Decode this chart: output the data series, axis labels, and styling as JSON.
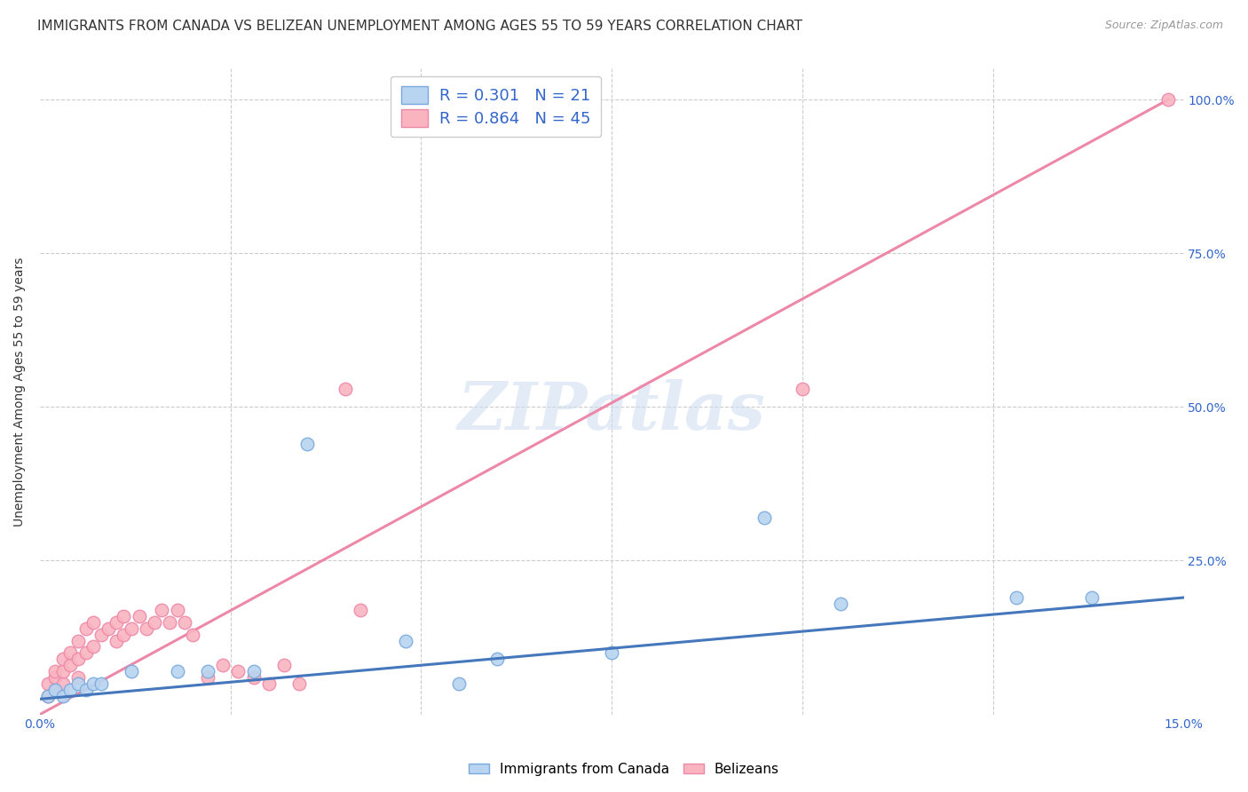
{
  "title": "IMMIGRANTS FROM CANADA VS BELIZEAN UNEMPLOYMENT AMONG AGES 55 TO 59 YEARS CORRELATION CHART",
  "source": "Source: ZipAtlas.com",
  "ylabel": "Unemployment Among Ages 55 to 59 years",
  "xlim": [
    0.0,
    0.15
  ],
  "ylim": [
    0.0,
    1.05
  ],
  "xtick_labels": [
    "0.0%",
    "15.0%"
  ],
  "xtick_positions": [
    0.0,
    0.15
  ],
  "ytick_labels": [
    "25.0%",
    "50.0%",
    "75.0%",
    "100.0%"
  ],
  "ytick_positions": [
    0.25,
    0.5,
    0.75,
    1.0
  ],
  "legend_entries": [
    {
      "label": "R = 0.301   N = 21",
      "color": "#b8d4f0"
    },
    {
      "label": "R = 0.864   N = 45",
      "color": "#f9b4c0"
    }
  ],
  "blue_scatter_x": [
    0.001,
    0.002,
    0.003,
    0.004,
    0.005,
    0.006,
    0.007,
    0.008,
    0.012,
    0.018,
    0.022,
    0.028,
    0.035,
    0.048,
    0.055,
    0.06,
    0.075,
    0.095,
    0.105,
    0.128,
    0.138
  ],
  "blue_scatter_y": [
    0.03,
    0.04,
    0.03,
    0.04,
    0.05,
    0.04,
    0.05,
    0.05,
    0.07,
    0.07,
    0.07,
    0.07,
    0.44,
    0.12,
    0.05,
    0.09,
    0.1,
    0.32,
    0.18,
    0.19,
    0.19
  ],
  "pink_scatter_x": [
    0.001,
    0.001,
    0.002,
    0.002,
    0.002,
    0.003,
    0.003,
    0.003,
    0.004,
    0.004,
    0.005,
    0.005,
    0.005,
    0.006,
    0.006,
    0.007,
    0.007,
    0.008,
    0.009,
    0.01,
    0.01,
    0.011,
    0.011,
    0.012,
    0.013,
    0.014,
    0.015,
    0.016,
    0.017,
    0.018,
    0.019,
    0.02,
    0.022,
    0.024,
    0.026,
    0.028,
    0.03,
    0.032,
    0.034,
    0.04,
    0.042,
    0.06,
    0.063,
    0.1,
    0.148
  ],
  "pink_scatter_y": [
    0.03,
    0.05,
    0.04,
    0.06,
    0.07,
    0.05,
    0.07,
    0.09,
    0.08,
    0.1,
    0.06,
    0.09,
    0.12,
    0.1,
    0.14,
    0.11,
    0.15,
    0.13,
    0.14,
    0.12,
    0.15,
    0.13,
    0.16,
    0.14,
    0.16,
    0.14,
    0.15,
    0.17,
    0.15,
    0.17,
    0.15,
    0.13,
    0.06,
    0.08,
    0.07,
    0.06,
    0.05,
    0.08,
    0.05,
    0.53,
    0.17,
    0.99,
    0.99,
    0.53,
    1.0
  ],
  "blue_line_x": [
    0.0,
    0.15
  ],
  "blue_line_y": [
    0.025,
    0.19
  ],
  "pink_line_x": [
    0.0,
    0.148
  ],
  "pink_line_y": [
    0.0,
    1.0
  ],
  "watermark": "ZIPatlas",
  "title_fontsize": 11,
  "label_fontsize": 10,
  "tick_fontsize": 10,
  "source_fontsize": 9
}
